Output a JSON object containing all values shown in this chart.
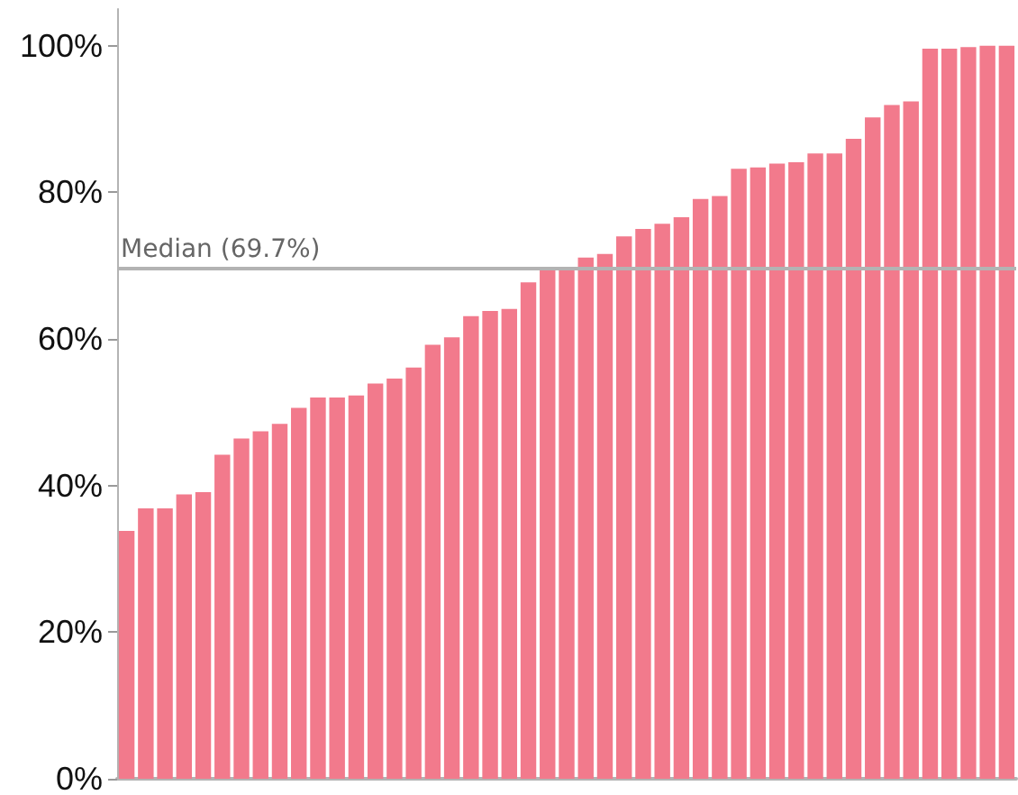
{
  "chart_data": {
    "type": "bar",
    "categories": [
      null,
      null,
      null,
      null,
      null,
      null,
      null,
      null,
      null,
      null,
      null,
      null,
      null,
      null,
      null,
      null,
      null,
      null,
      null,
      null,
      null,
      null,
      null,
      null,
      null,
      null,
      null,
      null,
      null,
      null,
      null,
      null,
      null,
      null,
      null,
      null,
      null,
      null,
      null,
      null,
      null,
      null,
      null,
      null,
      null,
      null,
      null
    ],
    "values": [
      33.8,
      36.9,
      36.9,
      38.8,
      39.1,
      44.2,
      46.4,
      47.4,
      48.4,
      50.6,
      52,
      52,
      52.3,
      53.9,
      54.6,
      56.1,
      59.2,
      60.2,
      63.1,
      63.8,
      64.1,
      67.7,
      69.4,
      69.7,
      71.1,
      71.6,
      74,
      75,
      75.7,
      76.6,
      79.1,
      79.5,
      83.2,
      83.4,
      83.9,
      84.1,
      85.3,
      85.3,
      87.3,
      90.2,
      91.9,
      92.4,
      99.6,
      99.6,
      99.8,
      100,
      100
    ],
    "color": "#f27a8c",
    "ylim": [
      0,
      105
    ],
    "yticks": [
      {
        "value": 0,
        "label": "0%"
      },
      {
        "value": 20,
        "label": "20%"
      },
      {
        "value": 40,
        "label": "40%"
      },
      {
        "value": 60,
        "label": "60%"
      },
      {
        "value": 80,
        "label": "80%"
      },
      {
        "value": 100,
        "label": "100%"
      }
    ],
    "ref_lines": [
      {
        "axis": "y",
        "value": 69.7,
        "label": "Median (69.7%)",
        "color": "#b3b3b3"
      }
    ]
  }
}
